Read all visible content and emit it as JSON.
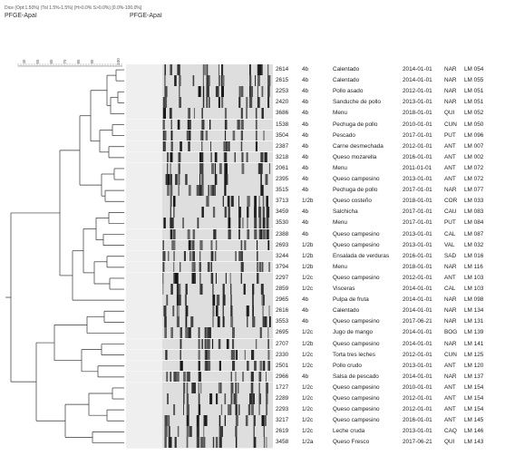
{
  "header": {
    "settings_text": "Dice (Opt:1.50%) (Tol 1.5%-1.5%) (H>0.0% S>0.0%) [0.0%-100.0%]",
    "experiment_left": "PFGE-ApaI",
    "experiment_right": "PFGE-ApaI"
  },
  "scale": {
    "ticks": [
      "45",
      "55",
      "65",
      "75",
      "85",
      "95",
      "100"
    ]
  },
  "isolates": [
    {
      "key": "2614",
      "mark": "4b",
      "food": "Calentado",
      "date": "2014-01-01",
      "city": "NAR",
      "lab": "LM 054"
    },
    {
      "key": "2615",
      "mark": "4b",
      "food": "Calentado",
      "date": "2014-01-01",
      "city": "NAR",
      "lab": "LM 055"
    },
    {
      "key": "2253",
      "mark": "4b",
      "food": "Pollo asado",
      "date": "2012-01-01",
      "city": "NAR",
      "lab": "LM 051"
    },
    {
      "key": "2420",
      "mark": "4b",
      "food": "Sanduche de pollo",
      "date": "2013-01-01",
      "city": "NAR",
      "lab": "LM 051"
    },
    {
      "key": "3686",
      "mark": "4b",
      "food": "Menu",
      "date": "2018-01-01",
      "city": "QUI",
      "lab": "LM 052"
    },
    {
      "key": "1538",
      "mark": "4b",
      "food": "Pechuga de pollo",
      "date": "2010-01-01",
      "city": "CUN",
      "lab": "LM 050"
    },
    {
      "key": "3504",
      "mark": "4b",
      "food": "Pescado",
      "date": "2017-01-01",
      "city": "PUT",
      "lab": "LM 096"
    },
    {
      "key": "2387",
      "mark": "4b",
      "food": "Carne desmechada",
      "date": "2012-01-01",
      "city": "ANT",
      "lab": "LM 007"
    },
    {
      "key": "3218",
      "mark": "4b",
      "food": "Queso mozarella",
      "date": "2016-01-01",
      "city": "ANT",
      "lab": "LM 002"
    },
    {
      "key": "2061",
      "mark": "4b",
      "food": "Menu",
      "date": "2011-01-01",
      "city": "ANT",
      "lab": "LM 072"
    },
    {
      "key": "2395",
      "mark": "4b",
      "food": "Queso campesino",
      "date": "2013-01-01",
      "city": "ANT",
      "lab": "LM 072"
    },
    {
      "key": "3515",
      "mark": "4b",
      "food": "Pechuga de pollo",
      "date": "2017-01-01",
      "city": "NAR",
      "lab": "LM 077"
    },
    {
      "key": "3713",
      "mark": "1/2b",
      "food": "Queso costeño",
      "date": "2018-01-01",
      "city": "COR",
      "lab": "LM 033"
    },
    {
      "key": "3459",
      "mark": "4b",
      "food": "Salchicha",
      "date": "2017-01-01",
      "city": "CAU",
      "lab": "LM 083"
    },
    {
      "key": "3530",
      "mark": "4b",
      "food": "Menu",
      "date": "2017-01-01",
      "city": "PUT",
      "lab": "LM 084"
    },
    {
      "key": "2388",
      "mark": "4b",
      "food": "Queso campesino",
      "date": "2013-01-01",
      "city": "CAL",
      "lab": "LM 087"
    },
    {
      "key": "2693",
      "mark": "1/2b",
      "food": "Queso campesino",
      "date": "2013-01-01",
      "city": "VAL",
      "lab": "LM 032"
    },
    {
      "key": "3244",
      "mark": "1/2b",
      "food": "Ensalada de verduras",
      "date": "2016-01-01",
      "city": "SAD",
      "lab": "LM 016"
    },
    {
      "key": "3794",
      "mark": "1/2b",
      "food": "Menu",
      "date": "2018-01-01",
      "city": "NAR",
      "lab": "LM 116"
    },
    {
      "key": "2297",
      "mark": "1/2c",
      "food": "Queso campesino",
      "date": "2012-01-01",
      "city": "ANT",
      "lab": "LM 103"
    },
    {
      "key": "2859",
      "mark": "1/2c",
      "food": "Visceras",
      "date": "2014-01-01",
      "city": "CAL",
      "lab": "LM 103"
    },
    {
      "key": "2965",
      "mark": "4b",
      "food": "Pulpa de fruta",
      "date": "2014-01-01",
      "city": "NAR",
      "lab": "LM 098"
    },
    {
      "key": "2616",
      "mark": "4b",
      "food": "Calentado",
      "date": "2014-01-01",
      "city": "NAR",
      "lab": "LM 134"
    },
    {
      "key": "3553",
      "mark": "4b",
      "food": "Queso campesino",
      "date": "2017-06-21",
      "city": "NAR",
      "lab": "LM 131"
    },
    {
      "key": "2695",
      "mark": "1/2c",
      "food": "Jugo de mango",
      "date": "2014-01-01",
      "city": "BOG",
      "lab": "LM 139"
    },
    {
      "key": "2707",
      "mark": "1/2b",
      "food": "Queso campesino",
      "date": "2014-01-01",
      "city": "NAR",
      "lab": "LM 141"
    },
    {
      "key": "2330",
      "mark": "1/2c",
      "food": "Torta tres leches",
      "date": "2012-01-01",
      "city": "CUN",
      "lab": "LM 125"
    },
    {
      "key": "2501",
      "mark": "1/2c",
      "food": "Pollo crudo",
      "date": "2013-01-01",
      "city": "ANT",
      "lab": "LM 120"
    },
    {
      "key": "2966",
      "mark": "4b",
      "food": "Salsa de pescado",
      "date": "2014-01-01",
      "city": "NAR",
      "lab": "LM 137"
    },
    {
      "key": "1727",
      "mark": "1/2c",
      "food": "Queso campesino",
      "date": "2010-01-01",
      "city": "ANT",
      "lab": "LM 154"
    },
    {
      "key": "2289",
      "mark": "1/2c",
      "food": "Queso campesino",
      "date": "2012-01-01",
      "city": "ANT",
      "lab": "LM 154"
    },
    {
      "key": "2293",
      "mark": "1/2c",
      "food": "Queso campesino",
      "date": "2012-01-01",
      "city": "ANT",
      "lab": "LM 154"
    },
    {
      "key": "3217",
      "mark": "1/2c",
      "food": "Queso campesino",
      "date": "2016-01-01",
      "city": "ANT",
      "lab": "LM 145"
    },
    {
      "key": "2619",
      "mark": "1/2c",
      "food": "Leche cruda",
      "date": "2013-01-01",
      "city": "CAQ",
      "lab": "LM 146"
    },
    {
      "key": "3458",
      "mark": "1/2a",
      "food": "Queso Fresco",
      "date": "2017-06-21",
      "city": "QUI",
      "lab": "LM 143"
    }
  ]
}
